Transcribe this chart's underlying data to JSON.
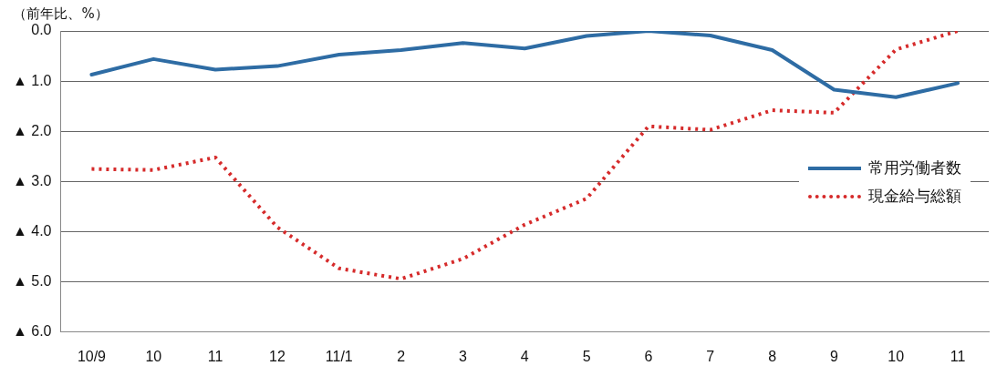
{
  "chart_data": {
    "type": "line",
    "ylabel": "（前年比、%）",
    "categories": [
      "10/9",
      "10",
      "11",
      "12",
      "11/1",
      "2",
      "3",
      "4",
      "5",
      "6",
      "7",
      "8",
      "9",
      "10",
      "11"
    ],
    "series": [
      {
        "name": "常用労働者数",
        "color": "#2e6ca4",
        "line_style": "solid",
        "values": [
          -0.87,
          -0.56,
          -0.77,
          -0.7,
          -0.47,
          -0.38,
          -0.24,
          -0.35,
          -0.1,
          0,
          -0.09,
          -0.38,
          -1.17,
          -1.32,
          -1.04
        ]
      },
      {
        "name": "現金給与総額",
        "color": "#d62b2b",
        "line_style": "dotted",
        "values": [
          -2.75,
          -2.77,
          -2.52,
          -3.91,
          -4.73,
          -4.94,
          -4.54,
          -3.86,
          -3.34,
          -1.9,
          -1.97,
          -1.58,
          -1.63,
          -0.37,
          0
        ]
      }
    ],
    "ylim": [
      -6,
      0
    ],
    "yticks": [
      {
        "value": 0,
        "label": "0.0"
      },
      {
        "value": -1,
        "label": "▲ 1.0"
      },
      {
        "value": -2,
        "label": "▲ 2.0"
      },
      {
        "value": -3,
        "label": "▲ 3.0"
      },
      {
        "value": -4,
        "label": "▲ 4.0"
      },
      {
        "value": -5,
        "label": "▲ 5.0"
      },
      {
        "value": -6,
        "label": "▲ 6.0"
      }
    ],
    "grid": "y",
    "legend": "right",
    "marker": "none"
  }
}
